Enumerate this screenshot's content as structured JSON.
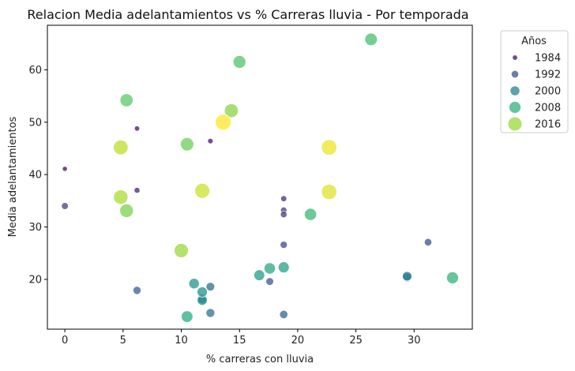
{
  "chart_data": {
    "type": "scatter",
    "title": "Relacion Media adelantamientos vs % Carreras lluvia - Por temporada",
    "xlabel": "% carreras con lluvia",
    "ylabel": "Media adelantamientos",
    "xlim": [
      -1.5,
      35.0
    ],
    "ylim": [
      10.5,
      68.5
    ],
    "xticks": [
      0,
      5,
      10,
      15,
      20,
      25,
      30
    ],
    "yticks": [
      20,
      30,
      40,
      50,
      60
    ],
    "grid": false,
    "colormap": "viridis",
    "color_range": [
      1982,
      2022
    ],
    "legend": {
      "title": "Años",
      "placement": "outside-top-right",
      "entries": [
        {
          "label": "1984",
          "year": 1984
        },
        {
          "label": "1992",
          "year": 1992
        },
        {
          "label": "2000",
          "year": 2000
        },
        {
          "label": "2008",
          "year": 2008
        },
        {
          "label": "2016",
          "year": 2016
        }
      ]
    },
    "points": [
      {
        "year": 1983,
        "x": 0.0,
        "y": 41.1
      },
      {
        "year": 1984,
        "x": 6.2,
        "y": 48.8
      },
      {
        "year": 1985,
        "x": 12.5,
        "y": 46.4
      },
      {
        "year": 1986,
        "x": 6.2,
        "y": 37.0
      },
      {
        "year": 1987,
        "x": 18.8,
        "y": 35.4
      },
      {
        "year": 1988,
        "x": 18.8,
        "y": 33.2
      },
      {
        "year": 1989,
        "x": 18.8,
        "y": 32.4
      },
      {
        "year": 1990,
        "x": 0.0,
        "y": 34.0
      },
      {
        "year": 1991,
        "x": 18.8,
        "y": 26.6
      },
      {
        "year": 1992,
        "x": 31.2,
        "y": 27.1
      },
      {
        "year": 1993,
        "x": 17.6,
        "y": 19.6
      },
      {
        "year": 1994,
        "x": 6.2,
        "y": 17.9
      },
      {
        "year": 1995,
        "x": 18.8,
        "y": 13.3
      },
      {
        "year": 1996,
        "x": 12.5,
        "y": 18.6
      },
      {
        "year": 1997,
        "x": 12.5,
        "y": 13.6
      },
      {
        "year": 1998,
        "x": 29.4,
        "y": 20.4
      },
      {
        "year": 1999,
        "x": 29.4,
        "y": 20.6
      },
      {
        "year": 2000,
        "x": 11.8,
        "y": 16.3
      },
      {
        "year": 2001,
        "x": 11.8,
        "y": 16.0
      },
      {
        "year": 2002,
        "x": 11.8,
        "y": 17.6
      },
      {
        "year": 2003,
        "x": 11.1,
        "y": 19.2
      },
      {
        "year": 2004,
        "x": 16.7,
        "y": 20.8
      },
      {
        "year": 2005,
        "x": 18.8,
        "y": 22.3
      },
      {
        "year": 2006,
        "x": 17.6,
        "y": 22.1
      },
      {
        "year": 2007,
        "x": 10.5,
        "y": 12.9
      },
      {
        "year": 2008,
        "x": 33.3,
        "y": 20.3
      },
      {
        "year": 2009,
        "x": 21.1,
        "y": 32.4
      },
      {
        "year": 2010,
        "x": 26.3,
        "y": 65.8
      },
      {
        "year": 2011,
        "x": 15.0,
        "y": 61.5
      },
      {
        "year": 2012,
        "x": 5.3,
        "y": 54.2
      },
      {
        "year": 2013,
        "x": 10.5,
        "y": 45.8
      },
      {
        "year": 2014,
        "x": 5.3,
        "y": 33.1
      },
      {
        "year": 2015,
        "x": 14.3,
        "y": 52.2
      },
      {
        "year": 2016,
        "x": 10.0,
        "y": 25.5
      },
      {
        "year": 2017,
        "x": 4.8,
        "y": 35.7
      },
      {
        "year": 2018,
        "x": 4.8,
        "y": 45.2
      },
      {
        "year": 2019,
        "x": 11.8,
        "y": 36.9
      },
      {
        "year": 2020,
        "x": 22.7,
        "y": 36.7
      },
      {
        "year": 2021,
        "x": 22.7,
        "y": 45.2
      },
      {
        "year": 2022,
        "x": 13.6,
        "y": 50.0
      }
    ]
  }
}
